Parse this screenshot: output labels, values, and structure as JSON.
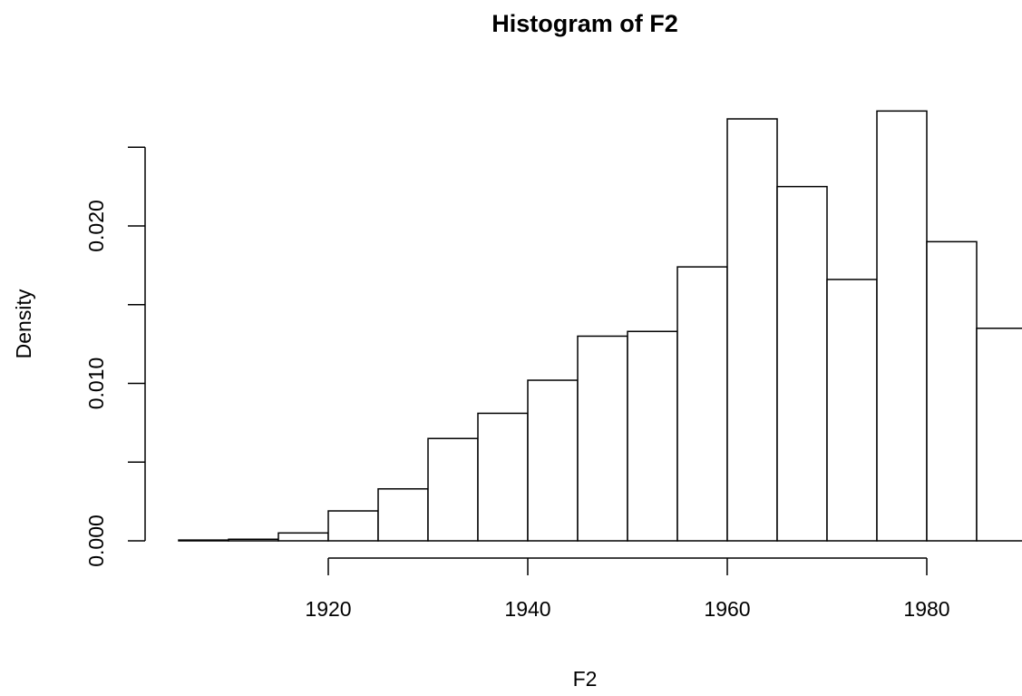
{
  "chart_data": {
    "type": "histogram",
    "title": "Histogram of F2",
    "x_label": "F2",
    "y_label": "Density",
    "bins": [
      1905,
      1910,
      1915,
      1920,
      1925,
      1930,
      1935,
      1940,
      1945,
      1950,
      1955,
      1960,
      1965,
      1970,
      1975,
      1980,
      1985,
      1990
    ],
    "values": [
      5e-05,
      0.0001,
      0.0005,
      0.0019,
      0.0033,
      0.0065,
      0.0081,
      0.0102,
      0.013,
      0.0133,
      0.0174,
      0.0268,
      0.0225,
      0.0166,
      0.0273,
      0.019,
      0.0135
    ],
    "color": "#ffffff",
    "edge_color": "#000000",
    "xlim": [
      1900,
      1990
    ],
    "xticks": [
      1920,
      1940,
      1960,
      1980
    ],
    "ylim": [
      0,
      0.028
    ],
    "yticks": [
      {
        "value": 0,
        "label": "0.000"
      },
      {
        "value": 0.01,
        "label": "0.010"
      },
      {
        "value": 0.02,
        "label": "0.020"
      }
    ],
    "yminor_ticks": [
      0.005,
      0.015,
      0.025
    ]
  }
}
